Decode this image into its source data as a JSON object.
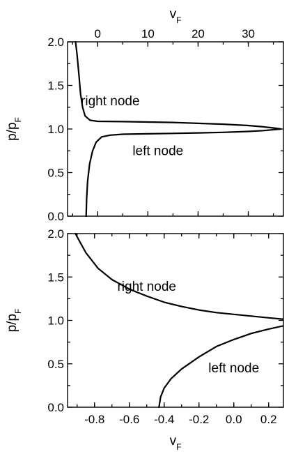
{
  "chart_data": [
    {
      "type": "line",
      "panel": "top",
      "xlabel": "v",
      "xlabel_sub": "F",
      "xaxis_position": "top",
      "ylabel": "p/p",
      "ylabel_sub": "F",
      "xlim": [
        -6,
        37
      ],
      "ylim": [
        0,
        2
      ],
      "xticks": [
        0,
        10,
        20,
        30
      ],
      "xtick_labels": [
        "0",
        "10",
        "20",
        "30"
      ],
      "yticks": [
        0,
        0.5,
        1,
        1.5,
        2
      ],
      "ytick_labels": [
        "0.0",
        "0.5",
        "1.0",
        "1.5",
        "2.0"
      ],
      "grid": false,
      "annotations": [
        {
          "text": "right node",
          "x": 2.5,
          "y": 1.32
        },
        {
          "text": "left node",
          "x": 12,
          "y": 0.75
        }
      ],
      "series": [
        {
          "id": "right-node",
          "points": [
            [
              -4.4,
              2.0
            ],
            [
              -4.1,
              1.85
            ],
            [
              -3.7,
              1.6
            ],
            [
              -3.4,
              1.4
            ],
            [
              -3.0,
              1.25
            ],
            [
              -2.5,
              1.15
            ],
            [
              -1.5,
              1.1
            ],
            [
              0,
              1.088
            ],
            [
              5,
              1.085
            ],
            [
              10,
              1.08
            ],
            [
              15,
              1.075
            ],
            [
              20,
              1.065
            ],
            [
              25,
              1.055
            ],
            [
              30,
              1.04
            ],
            [
              33,
              1.025
            ],
            [
              35,
              1.012
            ],
            [
              36.5,
              1.0
            ]
          ]
        },
        {
          "id": "left-node",
          "points": [
            [
              -2.3,
              0.0
            ],
            [
              -2.2,
              0.2
            ],
            [
              -2.0,
              0.4
            ],
            [
              -1.6,
              0.6
            ],
            [
              -1.0,
              0.75
            ],
            [
              -0.3,
              0.85
            ],
            [
              0.8,
              0.91
            ],
            [
              2.5,
              0.93
            ],
            [
              5,
              0.94
            ],
            [
              10,
              0.945
            ],
            [
              15,
              0.95
            ],
            [
              20,
              0.955
            ],
            [
              25,
              0.962
            ],
            [
              30,
              0.972
            ],
            [
              33,
              0.982
            ],
            [
              35,
              0.992
            ],
            [
              36.5,
              1.0
            ]
          ]
        }
      ]
    },
    {
      "type": "line",
      "panel": "bottom",
      "xlabel": "v",
      "xlabel_sub": "F",
      "xaxis_position": "bottom",
      "ylabel": "p/p",
      "ylabel_sub": "F",
      "xlim": [
        -0.955,
        0.285
      ],
      "ylim": [
        0,
        2
      ],
      "xticks": [
        -0.8,
        -0.6,
        -0.4,
        -0.2,
        0.0,
        0.2
      ],
      "xtick_labels": [
        "-0.8",
        "-0.6",
        "-0.4",
        "-0.2",
        "0.0",
        "0.2"
      ],
      "yticks": [
        0,
        0.5,
        1,
        1.5,
        2
      ],
      "ytick_labels": [
        "0.0",
        "0.5",
        "1.0",
        "1.5",
        "2.0"
      ],
      "grid": false,
      "annotations": [
        {
          "text": "right node",
          "x": -0.5,
          "y": 1.39
        },
        {
          "text": "left node",
          "x": 0.0,
          "y": 0.45
        }
      ],
      "series": [
        {
          "id": "right-node",
          "points": [
            [
              -0.91,
              2.0
            ],
            [
              -0.85,
              1.78
            ],
            [
              -0.78,
              1.6
            ],
            [
              -0.7,
              1.47
            ],
            [
              -0.6,
              1.36
            ],
            [
              -0.5,
              1.28
            ],
            [
              -0.4,
              1.21
            ],
            [
              -0.3,
              1.16
            ],
            [
              -0.2,
              1.12
            ],
            [
              -0.1,
              1.09
            ],
            [
              0.0,
              1.07
            ],
            [
              0.1,
              1.05
            ],
            [
              0.2,
              1.03
            ],
            [
              0.28,
              1.015
            ]
          ]
        },
        {
          "id": "left-node",
          "points": [
            [
              -0.43,
              0.0
            ],
            [
              -0.42,
              0.12
            ],
            [
              -0.4,
              0.22
            ],
            [
              -0.36,
              0.33
            ],
            [
              -0.3,
              0.44
            ],
            [
              -0.2,
              0.58
            ],
            [
              -0.1,
              0.7
            ],
            [
              0.0,
              0.78
            ],
            [
              0.1,
              0.85
            ],
            [
              0.2,
              0.9
            ],
            [
              0.28,
              0.935
            ]
          ]
        }
      ]
    }
  ]
}
